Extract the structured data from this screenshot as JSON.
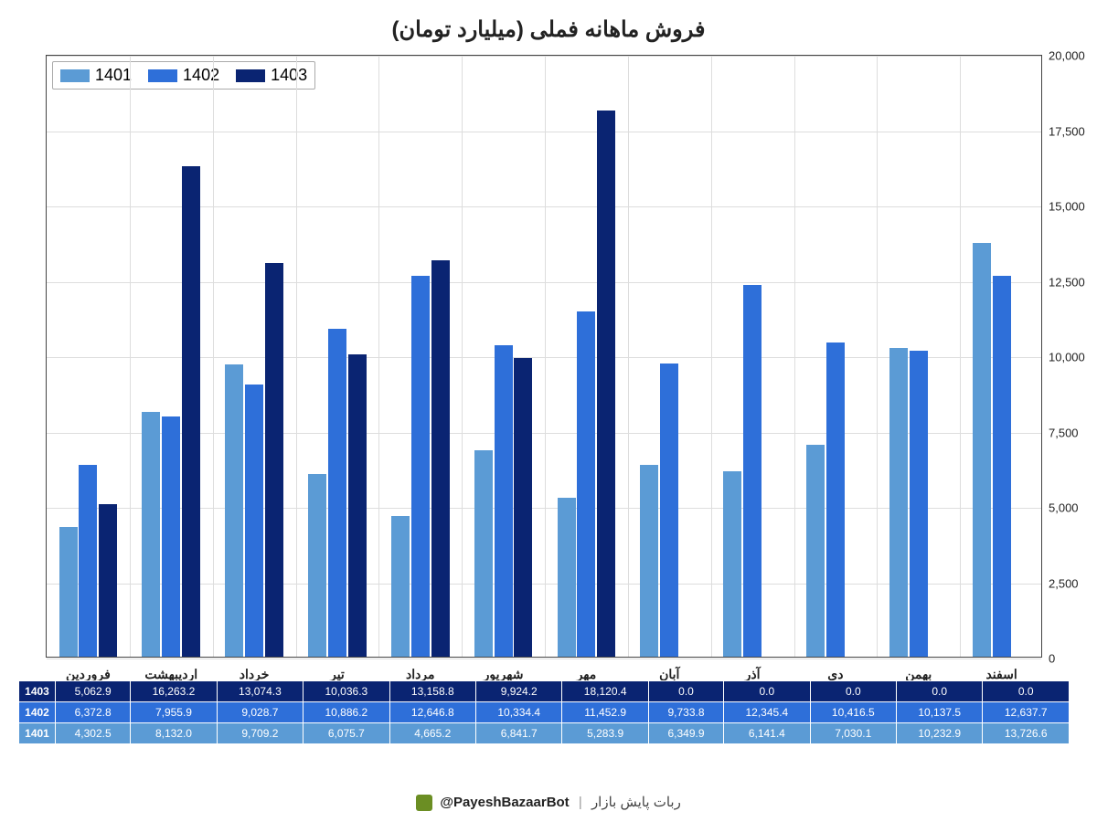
{
  "title": "فروش ماهانه فملی (میلیارد تومان)",
  "chart": {
    "type": "bar",
    "categories": [
      "فروردین",
      "اردیبهشت",
      "خرداد",
      "تیر",
      "مرداد",
      "شهریور",
      "مهر",
      "آبان",
      "آذر",
      "دی",
      "بهمن",
      "اسفند"
    ],
    "series": [
      {
        "name": "1401",
        "color": "#5b9bd5",
        "values": [
          4302.5,
          8132.0,
          9709.2,
          6075.7,
          4665.2,
          6841.7,
          5283.9,
          6349.9,
          6141.4,
          7030.1,
          10232.9,
          13726.6
        ]
      },
      {
        "name": "1402",
        "color": "#2e6fd9",
        "values": [
          6372.8,
          7955.9,
          9028.7,
          10886.2,
          12646.8,
          10334.4,
          11452.9,
          9733.8,
          12345.4,
          10416.5,
          10137.5,
          12637.7
        ]
      },
      {
        "name": "1403",
        "color": "#0a2472",
        "values": [
          5062.9,
          16263.2,
          13074.3,
          10036.3,
          13158.8,
          9924.2,
          18120.4,
          0.0,
          0.0,
          0.0,
          0.0,
          0.0
        ]
      }
    ],
    "ylim": [
      0,
      20000
    ],
    "yticks": [
      0,
      2500,
      5000,
      7500,
      10000,
      12500,
      15000,
      17500,
      20000
    ],
    "grid_color": "#dddddd",
    "background_color": "#ffffff",
    "plot_border_color": "#444444",
    "bar_group_width": 0.72,
    "bar_gap": 0.02,
    "title_fontsize": 24,
    "label_fontsize": 14,
    "tick_fontsize": 13
  },
  "table": {
    "row_headers": [
      "1403",
      "1402",
      "1401"
    ],
    "row_colors": [
      "#0a2472",
      "#2e6fd9",
      "#5b9bd5"
    ],
    "cells": [
      [
        "5,062.9",
        "16,263.2",
        "13,074.3",
        "10,036.3",
        "13,158.8",
        "9,924.2",
        "18,120.4",
        "0.0",
        "0.0",
        "0.0",
        "0.0",
        "0.0"
      ],
      [
        "6,372.8",
        "7,955.9",
        "9,028.7",
        "10,886.2",
        "12,646.8",
        "10,334.4",
        "11,452.9",
        "9,733.8",
        "12,345.4",
        "10,416.5",
        "10,137.5",
        "12,637.7"
      ],
      [
        "4,302.5",
        "8,132.0",
        "9,709.2",
        "6,075.7",
        "4,665.2",
        "6,841.7",
        "5,283.9",
        "6,349.9",
        "6,141.4",
        "7,030.1",
        "10,232.9",
        "13,726.6"
      ]
    ]
  },
  "footer": {
    "handle": "@PayeshBazaarBot",
    "text": "ربات پایش بازار"
  },
  "legend_labels": {
    "s0": "1401",
    "s1": "1402",
    "s2": "1403"
  }
}
